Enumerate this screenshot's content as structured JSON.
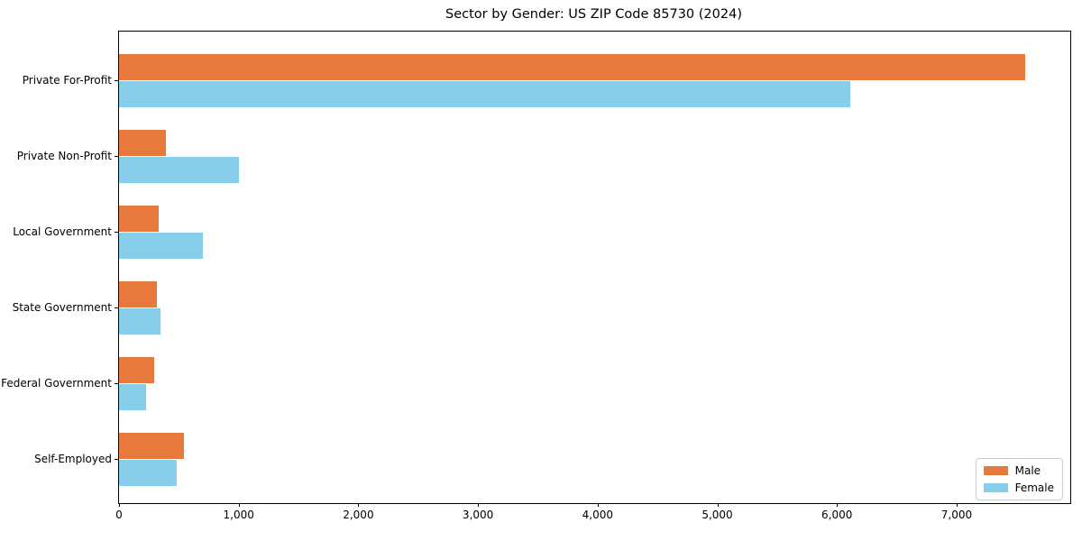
{
  "chart_data": {
    "type": "bar",
    "orientation": "horizontal",
    "title": "Sector by Gender: US ZIP Code 85730 (2024)",
    "categories": [
      "Private For-Profit",
      "Private Non-Profit",
      "Local Government",
      "State Government",
      "Federal Government",
      "Self-Employed"
    ],
    "series": [
      {
        "name": "Male",
        "color": "#e8793d",
        "values": [
          7570,
          390,
          330,
          320,
          295,
          540
        ]
      },
      {
        "name": "Female",
        "color": "#87ceeb",
        "values": [
          6110,
          1000,
          700,
          345,
          225,
          480
        ]
      }
    ],
    "xlabel": "",
    "ylabel": "",
    "xlim": [
      0,
      7950
    ],
    "x_tick_values": [
      0,
      1000,
      2000,
      3000,
      4000,
      5000,
      6000,
      7000
    ],
    "x_tick_labels": [
      "0",
      "1,000",
      "2,000",
      "3,000",
      "4,000",
      "5,000",
      "6,000",
      "7,000"
    ],
    "grid": false,
    "legend": {
      "position": "lower right",
      "entries": [
        "Male",
        "Female"
      ]
    }
  }
}
